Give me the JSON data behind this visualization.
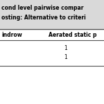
{
  "title_line1": "cond level pairwise compar",
  "title_line2": "osting: Alternative to criteri",
  "col_header1": "indrow",
  "col_header2": "Aerated static p",
  "cell_val1": "1",
  "cell_val2": "1",
  "background_color": "#ffffff",
  "title_bg_color": "#d9d9d9",
  "line_color": "#555555",
  "font_size": 5.5,
  "title_font_size": 5.5,
  "header_font_size": 5.5
}
